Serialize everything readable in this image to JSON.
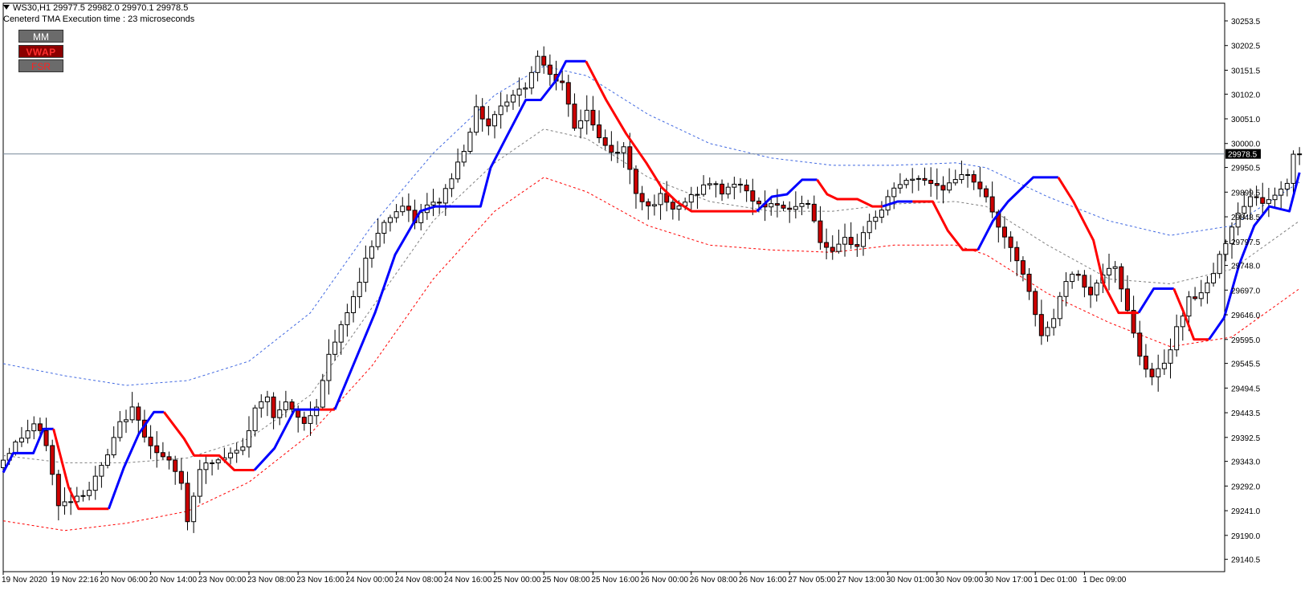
{
  "header": {
    "symbol_line": "WS30,H1  29977.5 29982.0 29970.1 29978.5",
    "indicator_line": "Ceneterd TMA Execution time : 23 microseconds"
  },
  "buttons": {
    "mm": "MM",
    "vwap": "VWAP",
    "fsr": "FSR"
  },
  "colors": {
    "bull_candle": "#ffffff",
    "bear_candle": "#cc0000",
    "trend_up": "#0000ff",
    "trend_down": "#ff0000",
    "upper_band": "#4169e1",
    "lower_band": "#ff0000",
    "mid_band": "#808080",
    "price_line": "#778899"
  },
  "chart_data": {
    "type": "candlestick",
    "symbol": "WS30",
    "timeframe": "H1",
    "current_price": 29978.5,
    "current_price_label": "29978.5",
    "ylim": [
      29115,
      30290
    ],
    "y_ticks": [
      "30253.5",
      "30202.5",
      "30151.5",
      "30102.0",
      "30051.0",
      "30000.0",
      "29950.5",
      "29899.5",
      "29848.5",
      "29797.5",
      "29748.0",
      "29697.0",
      "29646.0",
      "29595.0",
      "29545.5",
      "29494.5",
      "29443.5",
      "29392.5",
      "29343.0",
      "29292.0",
      "29241.0",
      "29190.0",
      "29140.5"
    ],
    "x_labels": [
      "19 Nov 2020",
      "19 Nov 22:16",
      "20 Nov 06:00",
      "20 Nov 14:00",
      "23 Nov 00:00",
      "23 Nov 08:00",
      "23 Nov 16:00",
      "24 Nov 00:00",
      "24 Nov 08:00",
      "24 Nov 16:00",
      "25 Nov 00:00",
      "25 Nov 08:00",
      "25 Nov 16:00",
      "26 Nov 00:00",
      "26 Nov 08:00",
      "26 Nov 16:00",
      "27 Nov 05:00",
      "27 Nov 13:00",
      "30 Nov 01:00",
      "30 Nov 09:00",
      "30 Nov 17:00",
      "1 Dec 01:00",
      "1 Dec 09:00"
    ],
    "candles_per_label": 8,
    "anchors": [
      [
        0,
        29330
      ],
      [
        3,
        29380
      ],
      [
        6,
        29420
      ],
      [
        8,
        29380
      ],
      [
        10,
        29250
      ],
      [
        12,
        29265
      ],
      [
        15,
        29285
      ],
      [
        18,
        29355
      ],
      [
        20,
        29420
      ],
      [
        22,
        29450
      ],
      [
        24,
        29400
      ],
      [
        26,
        29360
      ],
      [
        28,
        29340
      ],
      [
        30,
        29300
      ],
      [
        31,
        29220
      ],
      [
        33,
        29330
      ],
      [
        37,
        29350
      ],
      [
        40,
        29370
      ],
      [
        42,
        29450
      ],
      [
        44,
        29480
      ],
      [
        45,
        29440
      ],
      [
        47,
        29460
      ],
      [
        50,
        29420
      ],
      [
        52,
        29460
      ],
      [
        54,
        29560
      ],
      [
        56,
        29620
      ],
      [
        58,
        29680
      ],
      [
        60,
        29760
      ],
      [
        62,
        29820
      ],
      [
        64,
        29850
      ],
      [
        66,
        29870
      ],
      [
        68,
        29840
      ],
      [
        70,
        29870
      ],
      [
        72,
        29880
      ],
      [
        74,
        29930
      ],
      [
        76,
        29990
      ],
      [
        78,
        30070
      ],
      [
        80,
        30040
      ],
      [
        82,
        30080
      ],
      [
        84,
        30100
      ],
      [
        86,
        30120
      ],
      [
        88,
        30180
      ],
      [
        90,
        30150
      ],
      [
        92,
        30120
      ],
      [
        94,
        30030
      ],
      [
        96,
        30070
      ],
      [
        98,
        30010
      ],
      [
        100,
        29980
      ],
      [
        102,
        29990
      ],
      [
        104,
        29900
      ],
      [
        106,
        29870
      ],
      [
        108,
        29890
      ],
      [
        110,
        29860
      ],
      [
        112,
        29880
      ],
      [
        114,
        29900
      ],
      [
        116,
        29920
      ],
      [
        118,
        29900
      ],
      [
        120,
        29920
      ],
      [
        122,
        29900
      ],
      [
        124,
        29870
      ],
      [
        126,
        29880
      ],
      [
        128,
        29860
      ],
      [
        130,
        29870
      ],
      [
        132,
        29880
      ],
      [
        134,
        29800
      ],
      [
        136,
        29770
      ],
      [
        138,
        29800
      ],
      [
        140,
        29790
      ],
      [
        142,
        29840
      ],
      [
        144,
        29860
      ],
      [
        146,
        29910
      ],
      [
        148,
        29920
      ],
      [
        150,
        29930
      ],
      [
        152,
        29920
      ],
      [
        154,
        29910
      ],
      [
        156,
        29920
      ],
      [
        158,
        29940
      ],
      [
        160,
        29910
      ],
      [
        162,
        29860
      ],
      [
        164,
        29800
      ],
      [
        166,
        29760
      ],
      [
        168,
        29690
      ],
      [
        170,
        29600
      ],
      [
        172,
        29640
      ],
      [
        174,
        29720
      ],
      [
        176,
        29730
      ],
      [
        178,
        29690
      ],
      [
        180,
        29730
      ],
      [
        182,
        29740
      ],
      [
        184,
        29660
      ],
      [
        186,
        29560
      ],
      [
        188,
        29520
      ],
      [
        190,
        29540
      ],
      [
        192,
        29620
      ],
      [
        194,
        29680
      ],
      [
        196,
        29690
      ],
      [
        198,
        29730
      ],
      [
        200,
        29800
      ],
      [
        202,
        29860
      ],
      [
        204,
        29890
      ],
      [
        206,
        29880
      ],
      [
        208,
        29890
      ],
      [
        210,
        29920
      ],
      [
        211,
        29978.5
      ]
    ],
    "upper_band": [
      [
        0,
        29545
      ],
      [
        10,
        29520
      ],
      [
        20,
        29500
      ],
      [
        30,
        29510
      ],
      [
        40,
        29550
      ],
      [
        50,
        29650
      ],
      [
        60,
        29830
      ],
      [
        70,
        29980
      ],
      [
        80,
        30100
      ],
      [
        88,
        30160
      ],
      [
        95,
        30140
      ],
      [
        105,
        30060
      ],
      [
        115,
        30000
      ],
      [
        125,
        29970
      ],
      [
        135,
        29955
      ],
      [
        145,
        29955
      ],
      [
        155,
        29960
      ],
      [
        160,
        29950
      ],
      [
        170,
        29890
      ],
      [
        180,
        29840
      ],
      [
        190,
        29810
      ],
      [
        200,
        29830
      ],
      [
        211,
        29920
      ]
    ],
    "mid_band": [
      [
        0,
        29355
      ],
      [
        10,
        29340
      ],
      [
        20,
        29340
      ],
      [
        30,
        29350
      ],
      [
        40,
        29390
      ],
      [
        50,
        29480
      ],
      [
        60,
        29660
      ],
      [
        70,
        29840
      ],
      [
        80,
        29960
      ],
      [
        88,
        30030
      ],
      [
        95,
        30010
      ],
      [
        105,
        29930
      ],
      [
        115,
        29880
      ],
      [
        125,
        29860
      ],
      [
        135,
        29860
      ],
      [
        145,
        29875
      ],
      [
        155,
        29880
      ],
      [
        160,
        29870
      ],
      [
        170,
        29790
      ],
      [
        180,
        29720
      ],
      [
        190,
        29710
      ],
      [
        200,
        29740
      ],
      [
        211,
        29840
      ]
    ],
    "lower_band": [
      [
        0,
        29220
      ],
      [
        10,
        29200
      ],
      [
        20,
        29215
      ],
      [
        30,
        29240
      ],
      [
        40,
        29300
      ],
      [
        50,
        29400
      ],
      [
        60,
        29540
      ],
      [
        70,
        29720
      ],
      [
        80,
        29860
      ],
      [
        88,
        29930
      ],
      [
        95,
        29900
      ],
      [
        105,
        29830
      ],
      [
        115,
        29790
      ],
      [
        125,
        29780
      ],
      [
        135,
        29775
      ],
      [
        145,
        29790
      ],
      [
        155,
        29790
      ],
      [
        160,
        29770
      ],
      [
        170,
        29690
      ],
      [
        180,
        29630
      ],
      [
        190,
        29580
      ],
      [
        200,
        29600
      ],
      [
        211,
        29700
      ]
    ],
    "trend_line": [
      {
        "dir": "up",
        "pts": [
          [
            0,
            29320
          ],
          [
            2,
            29360
          ],
          [
            6,
            29360
          ],
          [
            8,
            29410
          ],
          [
            10,
            29410
          ]
        ]
      },
      {
        "dir": "down",
        "pts": [
          [
            10,
            29410
          ],
          [
            13,
            29290
          ],
          [
            15,
            29245
          ],
          [
            21,
            29245
          ]
        ]
      },
      {
        "dir": "up",
        "pts": [
          [
            21,
            29245
          ],
          [
            24,
            29330
          ],
          [
            27,
            29400
          ],
          [
            30,
            29445
          ],
          [
            32,
            29445
          ]
        ]
      },
      {
        "dir": "down",
        "pts": [
          [
            32,
            29445
          ],
          [
            36,
            29390
          ],
          [
            38,
            29355
          ],
          [
            43,
            29355
          ],
          [
            46,
            29325
          ],
          [
            50,
            29325
          ]
        ]
      },
      {
        "dir": "up",
        "pts": [
          [
            50,
            29325
          ],
          [
            54,
            29370
          ],
          [
            58,
            29450
          ],
          [
            63,
            29450
          ]
        ]
      },
      {
        "dir": "down",
        "pts": [
          [
            63,
            29450
          ],
          [
            66,
            29450
          ]
        ]
      },
      {
        "dir": "up",
        "pts": [
          [
            66,
            29450
          ],
          [
            70,
            29550
          ],
          [
            74,
            29650
          ],
          [
            78,
            29770
          ],
          [
            83,
            29860
          ],
          [
            86,
            29870
          ],
          [
            95,
            29870
          ],
          [
            97,
            29950
          ],
          [
            100,
            30010
          ],
          [
            104,
            30090
          ],
          [
            107,
            30090
          ],
          [
            110,
            30130
          ],
          [
            112,
            30170
          ],
          [
            116,
            30170
          ]
        ]
      },
      {
        "dir": "down",
        "pts": [
          [
            116,
            30170
          ],
          [
            120,
            30090
          ],
          [
            124,
            30020
          ],
          [
            128,
            29960
          ],
          [
            131,
            29910
          ],
          [
            134,
            29880
          ],
          [
            137,
            29860
          ],
          [
            150,
            29860
          ]
        ]
      },
      {
        "dir": "up",
        "pts": [
          [
            150,
            29860
          ],
          [
            153,
            29890
          ],
          [
            156,
            29895
          ],
          [
            159,
            29925
          ],
          [
            162,
            29925
          ]
        ]
      },
      {
        "dir": "down",
        "pts": [
          [
            162,
            29925
          ],
          [
            164,
            29895
          ],
          [
            166,
            29885
          ],
          [
            170,
            29885
          ],
          [
            173,
            29870
          ],
          [
            175,
            29870
          ]
        ]
      },
      {
        "dir": "up",
        "pts": [
          [
            175,
            29870
          ],
          [
            178,
            29880
          ],
          [
            181,
            29880
          ]
        ]
      },
      {
        "dir": "down",
        "pts": [
          [
            181,
            29880
          ],
          [
            183,
            29880
          ],
          [
            185,
            29880
          ],
          [
            188,
            29820
          ],
          [
            191,
            29780
          ],
          [
            194,
            29780
          ]
        ]
      },
      {
        "dir": "up",
        "pts": [
          [
            194,
            29780
          ],
          [
            197,
            29840
          ],
          [
            200,
            29880
          ],
          [
            203,
            29910
          ],
          [
            205,
            29930
          ],
          [
            210,
            29930
          ]
        ]
      },
      {
        "dir": "down",
        "pts": [
          [
            210,
            29930
          ],
          [
            213,
            29880
          ],
          [
            217,
            29800
          ],
          [
            219,
            29710
          ],
          [
            222,
            29650
          ],
          [
            226,
            29650
          ]
        ]
      },
      {
        "dir": "up",
        "pts": [
          [
            226,
            29650
          ],
          [
            229,
            29700
          ],
          [
            233,
            29700
          ]
        ]
      },
      {
        "dir": "down",
        "pts": [
          [
            233,
            29700
          ],
          [
            235,
            29650
          ],
          [
            237,
            29595
          ],
          [
            240,
            29595
          ]
        ]
      },
      {
        "dir": "up",
        "pts": [
          [
            240,
            29595
          ],
          [
            243,
            29640
          ],
          [
            246,
            29750
          ],
          [
            249,
            29830
          ],
          [
            252,
            29870
          ],
          [
            256,
            29860
          ],
          [
            258,
            29940
          ]
        ]
      }
    ]
  }
}
